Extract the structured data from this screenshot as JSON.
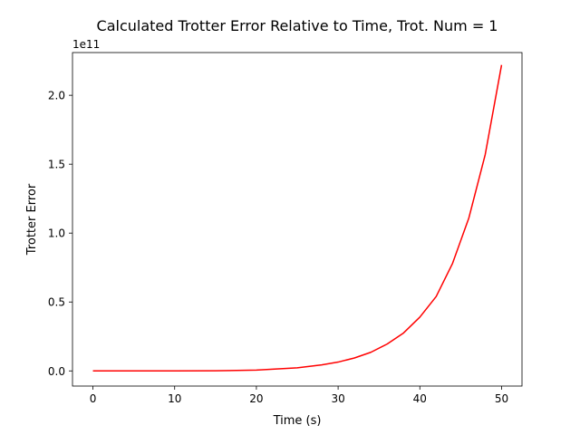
{
  "chart_data": {
    "type": "line",
    "title": "Calculated Trotter Error Relative to Time, Trot. Num = 1",
    "xlabel": "Time (s)",
    "ylabel": "Trotter Error",
    "offset_label": "1e11",
    "xlim": [
      -2.5,
      52.5
    ],
    "ylim": [
      -11000000000.0,
      231000000000.0
    ],
    "xticks": [
      0,
      10,
      20,
      30,
      40,
      50
    ],
    "xtick_labels": [
      "0",
      "10",
      "20",
      "30",
      "40",
      "50"
    ],
    "yticks": [
      0,
      50000000000.0,
      100000000000.0,
      150000000000.0,
      200000000000.0
    ],
    "ytick_labels": [
      "0.0",
      "0.5",
      "1.0",
      "1.5",
      "2.0"
    ],
    "grid": false,
    "series": [
      {
        "color": "#ff0000",
        "x": [
          0,
          5,
          10,
          15,
          20,
          25,
          28,
          30,
          32,
          34,
          36,
          38,
          40,
          42,
          44,
          46,
          48,
          50
        ],
        "y": [
          0,
          0,
          0,
          100000000.0,
          600000000.0,
          2200000000.0,
          4400000000.0,
          6400000000.0,
          9400000000.0,
          13500000000.0,
          19500000000.0,
          27500000000.0,
          39000000000.0,
          54000000000.0,
          78000000000.0,
          111000000000.0,
          157000000000.0,
          222000000000.0
        ]
      }
    ]
  }
}
